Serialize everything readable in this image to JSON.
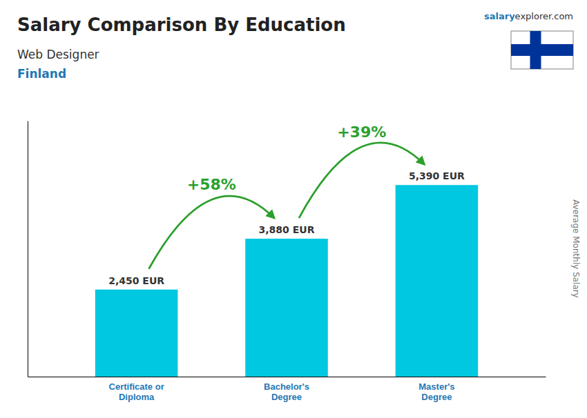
{
  "chart_data": {
    "type": "bar",
    "title": "Salary Comparison By Education",
    "subtitle": [
      "Web Designer",
      "Finland"
    ],
    "ylabel": "Average Monthly Salary",
    "categories": [
      "Certificate or\nDiploma",
      "Bachelor's\nDegree",
      "Master's\nDegree"
    ],
    "values": [
      2450,
      3880,
      5390
    ],
    "value_labels": [
      "2,450 EUR",
      "3,880 EUR",
      "5,390 EUR"
    ],
    "data_labels": true,
    "color": "#00c8e0",
    "ylim": [
      0,
      7200
    ],
    "tick_labels": "x",
    "grid": false,
    "annotations": [
      {
        "text": "+58%",
        "from": "Certificate or\nDiploma",
        "to": "Bachelor's\nDegree"
      },
      {
        "text": "+39%",
        "from": "Bachelor's\nDegree",
        "to": "Master's\nDegree"
      },
      {
        "text": "salary"
      },
      {
        "text": "explorer.com"
      }
    ]
  }
}
